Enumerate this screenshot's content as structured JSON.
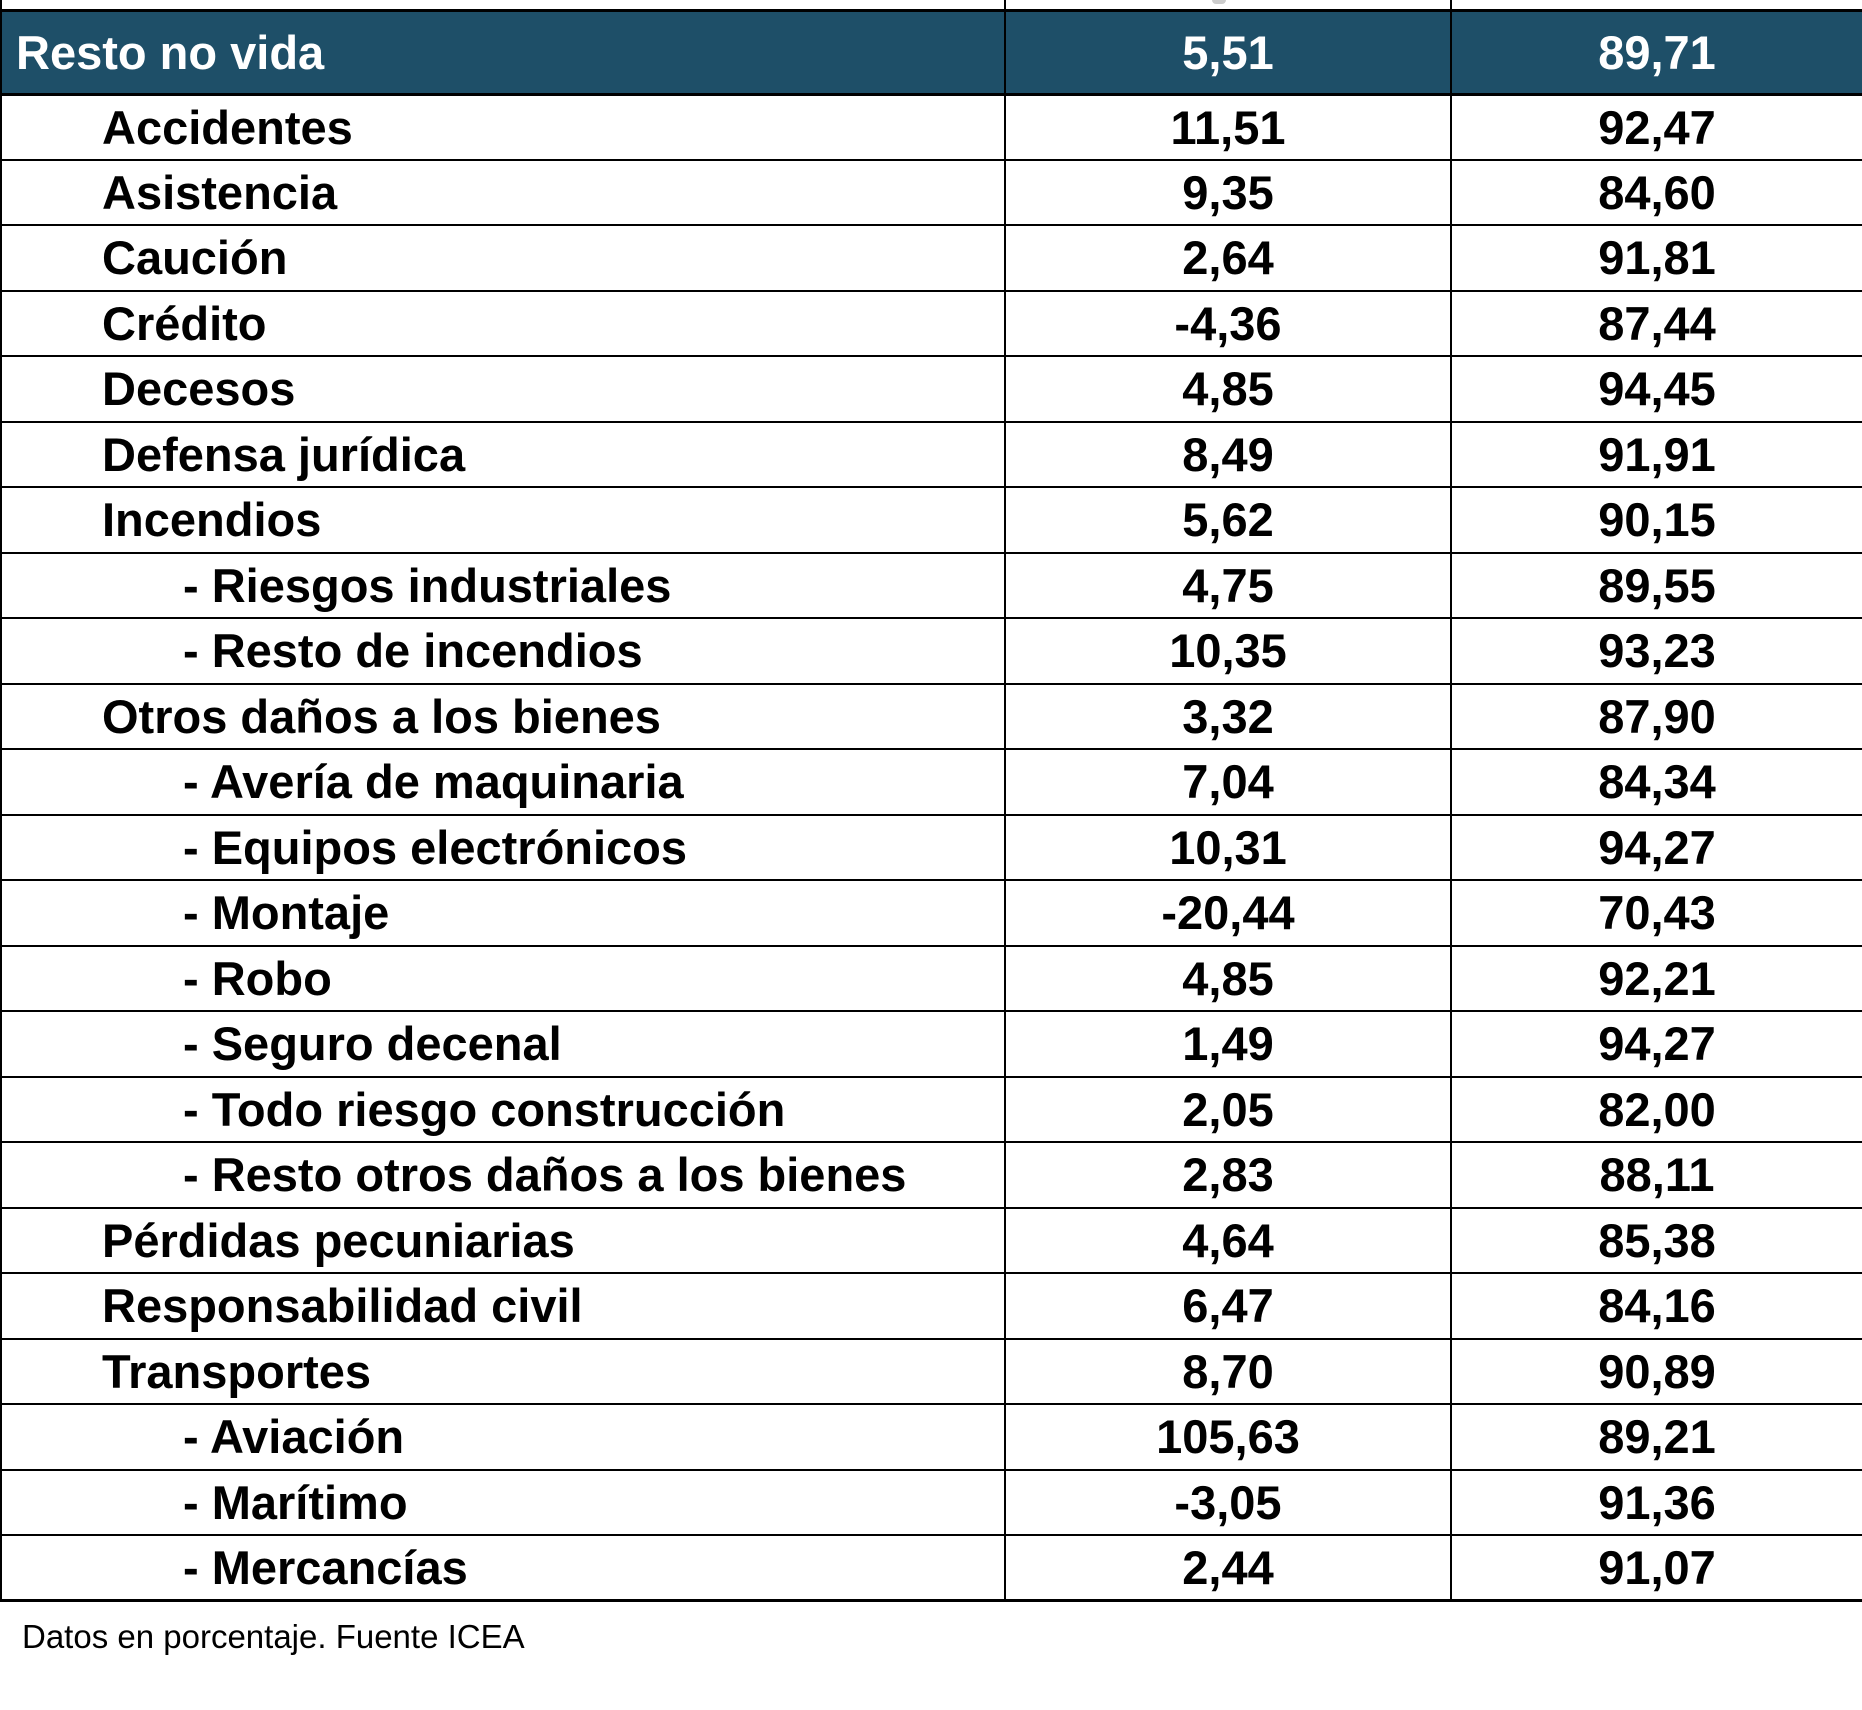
{
  "colors": {
    "accent": "#1E4F68",
    "border": "#000000",
    "header_text": "#FFFFFF"
  },
  "chart_data": {
    "type": "table",
    "header_row": {
      "label": "Resto no vida",
      "value1": "5,51",
      "value2": "89,71"
    },
    "rows": [
      {
        "label": "Accidentes",
        "level": 1,
        "value1": "11,51",
        "value2": "92,47"
      },
      {
        "label": "Asistencia",
        "level": 1,
        "value1": "9,35",
        "value2": "84,60"
      },
      {
        "label": "Caución",
        "level": 1,
        "value1": "2,64",
        "value2": "91,81"
      },
      {
        "label": "Crédito",
        "level": 1,
        "value1": "-4,36",
        "value2": "87,44"
      },
      {
        "label": "Decesos",
        "level": 1,
        "value1": "4,85",
        "value2": "94,45"
      },
      {
        "label": "Defensa jurídica",
        "level": 1,
        "value1": "8,49",
        "value2": "91,91"
      },
      {
        "label": "Incendios",
        "level": 1,
        "value1": "5,62",
        "value2": "90,15"
      },
      {
        "label": "- Riesgos industriales",
        "level": 2,
        "value1": "4,75",
        "value2": "89,55"
      },
      {
        "label": "- Resto de incendios",
        "level": 2,
        "value1": "10,35",
        "value2": "93,23"
      },
      {
        "label": "Otros daños a los bienes",
        "level": 1,
        "value1": "3,32",
        "value2": "87,90"
      },
      {
        "label": "- Avería de maquinaria",
        "level": 2,
        "value1": "7,04",
        "value2": "84,34"
      },
      {
        "label": "- Equipos electrónicos",
        "level": 2,
        "value1": "10,31",
        "value2": "94,27"
      },
      {
        "label": "- Montaje",
        "level": 2,
        "value1": "-20,44",
        "value2": "70,43"
      },
      {
        "label": "- Robo",
        "level": 2,
        "value1": "4,85",
        "value2": "92,21"
      },
      {
        "label": "- Seguro decenal",
        "level": 2,
        "value1": "1,49",
        "value2": "94,27"
      },
      {
        "label": "- Todo riesgo construcción",
        "level": 2,
        "value1": "2,05",
        "value2": "82,00"
      },
      {
        "label": "- Resto otros daños a los bienes",
        "level": 2,
        "value1": "2,83",
        "value2": "88,11"
      },
      {
        "label": "Pérdidas pecuniarias",
        "level": 1,
        "value1": "4,64",
        "value2": "85,38"
      },
      {
        "label": "Responsabilidad civil",
        "level": 1,
        "value1": "6,47",
        "value2": "84,16"
      },
      {
        "label": "Transportes",
        "level": 1,
        "value1": "8,70",
        "value2": "90,89"
      },
      {
        "label": "- Aviación",
        "level": 2,
        "value1": "105,63",
        "value2": "89,21"
      },
      {
        "label": "- Marítimo",
        "level": 2,
        "value1": "-3,05",
        "value2": "91,36"
      },
      {
        "label": "- Mercancías",
        "level": 2,
        "value1": "2,44",
        "value2": "91,07"
      }
    ],
    "footer_note": "Datos en porcentaje. Fuente ICEA"
  }
}
